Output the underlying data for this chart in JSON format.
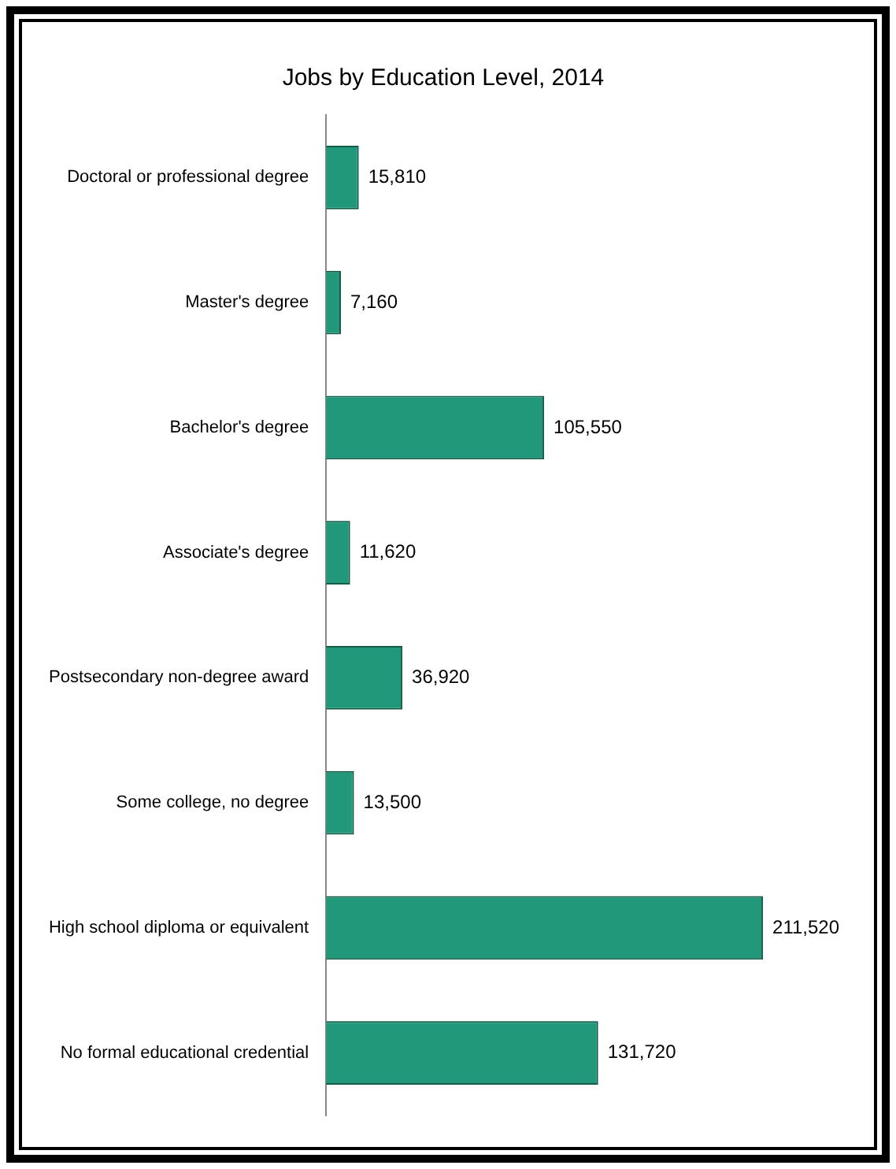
{
  "chart_data": {
    "type": "bar",
    "title": "Jobs by Education Level, 2014",
    "orientation": "horizontal",
    "value_labels": [
      "15,810",
      "7,160",
      "105,550",
      "11,620",
      "36,920",
      "13,500",
      "211,520",
      "131,720"
    ],
    "color": "#21987a",
    "categories": [
      "Doctoral or professional degree",
      "Master's degree",
      "Bachelor's degree",
      "Associate's degree",
      "Postsecondary non-degree award",
      "Some college, no degree",
      "High school diploma or equivalent",
      "No formal educational credential"
    ],
    "values": [
      15810,
      7160,
      105550,
      11620,
      36920,
      13500,
      211520,
      131720
    ]
  }
}
